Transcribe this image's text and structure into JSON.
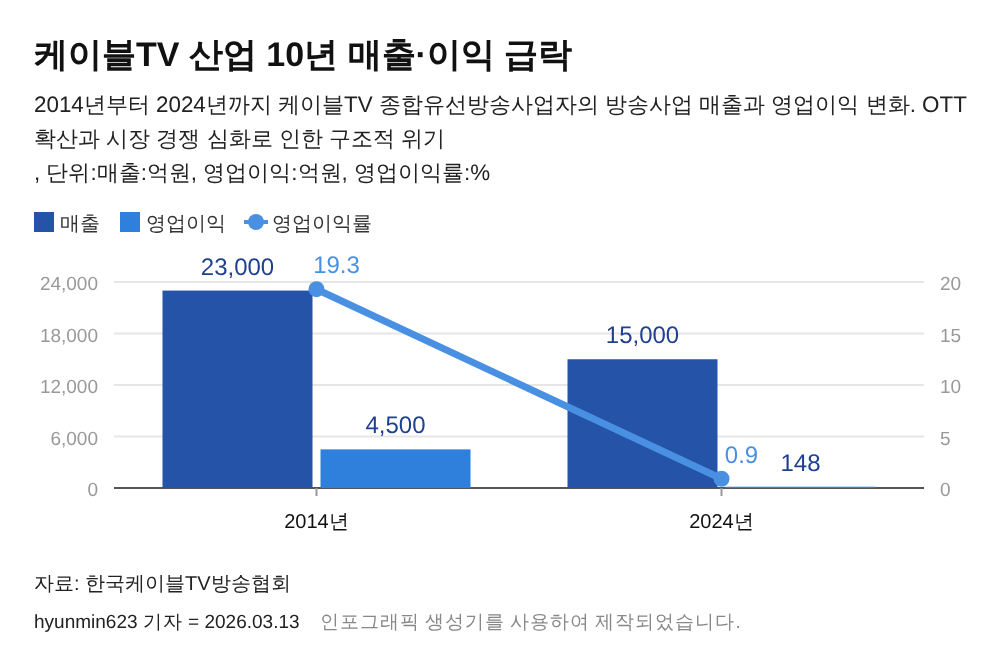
{
  "chart_data": {
    "type": "bar",
    "title": "케이블TV 산업 10년 매출·이익 급락",
    "subtitle": "2014년부터 2024년까지 케이블TV 종합유선방송사업자의 방송사업 매출과 영업이익 변화. OTT 확산과 시장 경쟁 심화로 인한 구조적 위기\n, 단위:매출:억원, 영업이익:억원, 영업이익률:%",
    "categories": [
      "2014년",
      "2024년"
    ],
    "series": [
      {
        "name": "매출",
        "color": "#2453a8",
        "values": [
          23000,
          15000
        ],
        "value_labels": [
          "23,000",
          "15,000"
        ]
      },
      {
        "name": "영업이익",
        "color": "#2f7fdc",
        "values": [
          4500,
          148
        ],
        "value_labels": [
          "4,500",
          "148"
        ]
      },
      {
        "name": "영업이익률",
        "type": "line",
        "axis": "y2",
        "color": "#4a90e2",
        "marker": "circle",
        "values": [
          19.3,
          0.9
        ],
        "value_labels": [
          "19.3",
          "0.9"
        ]
      }
    ],
    "ylim": [
      0,
      24000
    ],
    "yticks": [
      0,
      {
        "value": 6000,
        "label": "6,000"
      },
      {
        "value": 12000,
        "label": "12,000"
      },
      {
        "value": 18000,
        "label": "18,000"
      },
      {
        "value": 24000,
        "label": "24,000"
      }
    ],
    "y2lim": [
      0,
      20
    ],
    "y2ticks": [
      0,
      5,
      10,
      15,
      20
    ],
    "grid": "y",
    "legend": "top left",
    "annotations": [
      "자료: 한국케이블TV방송협회",
      "hyunmin623 기자 = 2026.03.13",
      "인포그래픽 생성기를 사용하여 제작되었습니다."
    ]
  }
}
